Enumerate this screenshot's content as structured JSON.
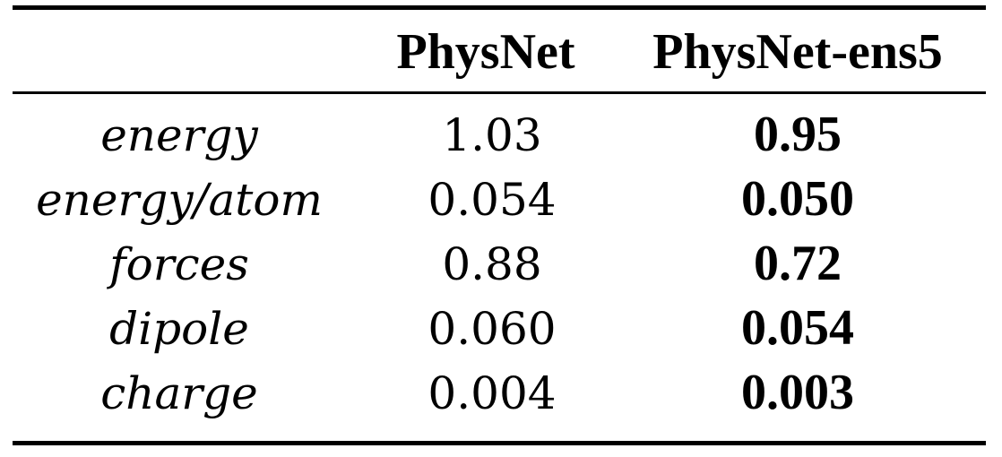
{
  "table": {
    "headers": [
      "",
      "PhysNet",
      "PhysNet-ens5"
    ],
    "rows": [
      {
        "label": "energy",
        "physnet": "1.03",
        "ens5": "0.95"
      },
      {
        "label": "energy/atom",
        "physnet": "0.054",
        "ens5": "0.050"
      },
      {
        "label": "forces",
        "physnet": "0.88",
        "ens5": "0.72"
      },
      {
        "label": "dipole",
        "physnet": "0.060",
        "ens5": "0.054"
      },
      {
        "label": "charge",
        "physnet": "0.004",
        "ens5": "0.003"
      }
    ]
  }
}
